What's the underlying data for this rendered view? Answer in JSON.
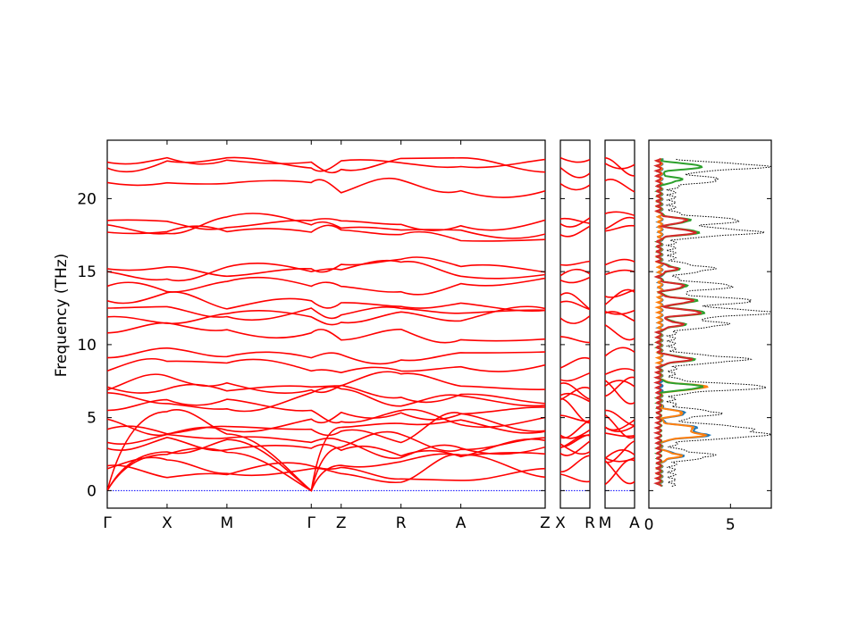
{
  "chart_data": {
    "type": "line",
    "ylabel": "Frequency (THz)",
    "ylim": [
      -1.2,
      24
    ],
    "y_ticks": [
      0,
      5,
      10,
      15,
      20
    ],
    "colors": {
      "band": "#ff0000",
      "zero_line": "#0000ff",
      "dos_total": "#000000",
      "pdos": [
        "#1f77b4",
        "#ff7f0e",
        "#2ca02c",
        "#d62728"
      ]
    },
    "band_panels": [
      {
        "id": "main",
        "labels": [
          "Γ",
          "X",
          "M",
          "Γ",
          "Z",
          "R",
          "A",
          "Z"
        ],
        "segment_lengths": [
          1,
          1,
          1.41,
          0.5,
          1,
          1,
          1.41
        ]
      },
      {
        "id": "xr",
        "labels": [
          "X",
          "R"
        ],
        "segment_lengths": [
          1
        ]
      },
      {
        "id": "ma",
        "labels": [
          "M",
          "A"
        ],
        "segment_lengths": [
          1
        ]
      }
    ],
    "band_frequencies_at_gamma": [
      0,
      0,
      0,
      1.5,
      1.7,
      2.9,
      3.3,
      4.2,
      4.9,
      5.5,
      6.7,
      6.9,
      7.1,
      8.2,
      9.1,
      10.8,
      11.9,
      12.5,
      13.0,
      14.0,
      15.0,
      15.2,
      17.7,
      18.2,
      18.5,
      21.1,
      22.1,
      22.5
    ],
    "dos": {
      "xlim": [
        0,
        7.5
      ],
      "x_ticks": [
        0,
        5
      ],
      "peak_frequencies": [
        2.4,
        3.8,
        4.3,
        5.3,
        7.1,
        9.0,
        11.4,
        12.2,
        13.0,
        14.0,
        15.2,
        17.7,
        18.5,
        21.3,
        22.2
      ]
    }
  }
}
